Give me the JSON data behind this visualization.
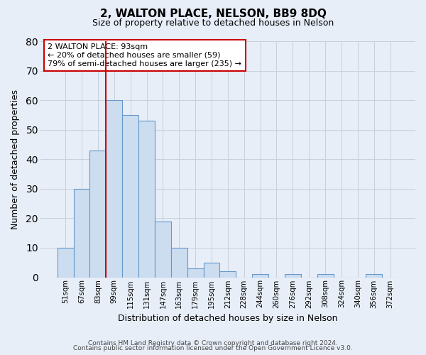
{
  "title": "2, WALTON PLACE, NELSON, BB9 8DQ",
  "subtitle": "Size of property relative to detached houses in Nelson",
  "xlabel": "Distribution of detached houses by size in Nelson",
  "ylabel": "Number of detached properties",
  "bar_labels": [
    "51sqm",
    "67sqm",
    "83sqm",
    "99sqm",
    "115sqm",
    "131sqm",
    "147sqm",
    "163sqm",
    "179sqm",
    "195sqm",
    "212sqm",
    "228sqm",
    "244sqm",
    "260sqm",
    "276sqm",
    "292sqm",
    "308sqm",
    "324sqm",
    "340sqm",
    "356sqm",
    "372sqm"
  ],
  "bar_values": [
    10,
    30,
    43,
    60,
    55,
    53,
    19,
    10,
    3,
    5,
    2,
    0,
    1,
    0,
    1,
    0,
    1,
    0,
    0,
    1,
    0
  ],
  "bar_color": "#ccddf0",
  "bar_edge_color": "#6699cc",
  "ylim": [
    0,
    80
  ],
  "yticks": [
    0,
    10,
    20,
    30,
    40,
    50,
    60,
    70,
    80
  ],
  "vline_x_index": 3,
  "annotation_title": "2 WALTON PLACE: 93sqm",
  "annotation_line1": "← 20% of detached houses are smaller (59)",
  "annotation_line2": "79% of semi-detached houses are larger (235) →",
  "annotation_box_facecolor": "#ffffff",
  "annotation_border_color": "#cc0000",
  "vline_color": "#cc0000",
  "footer1": "Contains HM Land Registry data © Crown copyright and database right 2024.",
  "footer2": "Contains public sector information licensed under the Open Government Licence v3.0.",
  "background_color": "#e8eef8",
  "grid_color": "#c8d0dc"
}
